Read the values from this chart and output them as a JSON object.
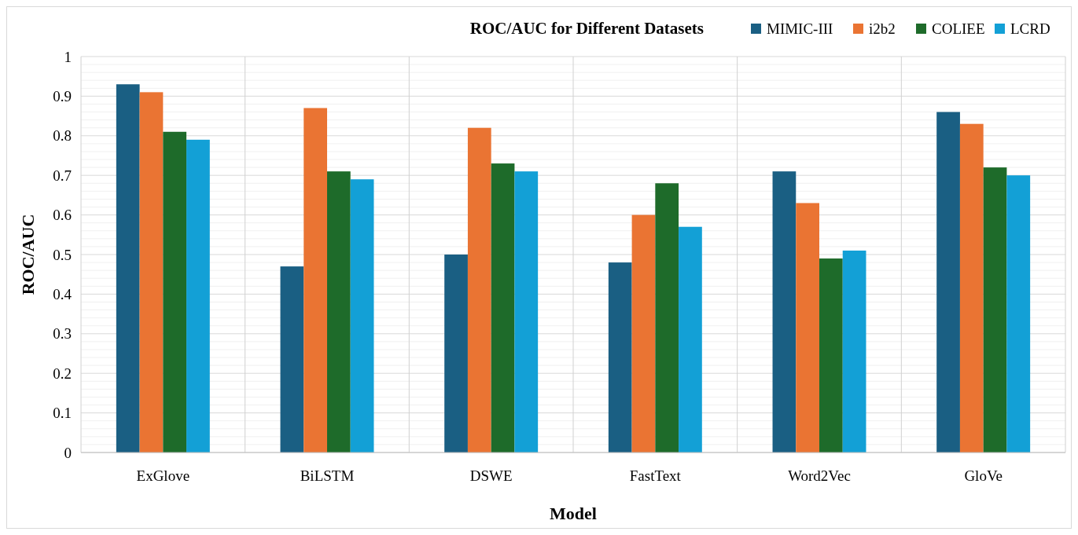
{
  "chart_data": {
    "type": "bar",
    "title": "ROC/AUC for Different Datasets",
    "xlabel": "Model",
    "ylabel": "ROC/AUC",
    "categories": [
      "ExGlove",
      "BiLSTM",
      "DSWE",
      "FastText",
      "Word2Vec",
      "GloVe"
    ],
    "series": [
      {
        "name": "MIMIC-III",
        "color": "#1a5f83",
        "values": [
          0.93,
          0.47,
          0.5,
          0.48,
          0.71,
          0.86
        ]
      },
      {
        "name": "i2b2",
        "color": "#ea7433",
        "values": [
          0.91,
          0.87,
          0.82,
          0.6,
          0.63,
          0.83
        ]
      },
      {
        "name": "COLIEE",
        "color": "#1e6b2a",
        "values": [
          0.81,
          0.71,
          0.73,
          0.68,
          0.49,
          0.72
        ]
      },
      {
        "name": "LCRD",
        "color": "#13a0d6",
        "values": [
          0.79,
          0.69,
          0.71,
          0.57,
          0.51,
          0.7
        ]
      }
    ],
    "ylim": [
      0,
      1
    ],
    "yticks": [
      0,
      0.1,
      0.2,
      0.3,
      0.4,
      0.5,
      0.6,
      0.7,
      0.8,
      0.9,
      1
    ],
    "grid": true,
    "legend": "top right"
  }
}
